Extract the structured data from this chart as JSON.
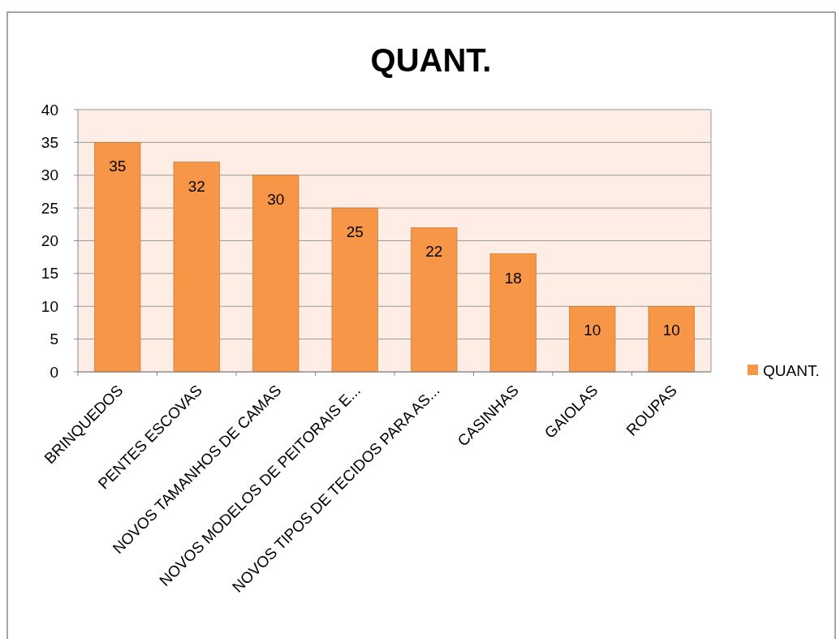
{
  "chart_data": {
    "type": "bar",
    "title": "QUANT.",
    "categories": [
      "BRINQUEDOS",
      "PENTES ESCOVAS",
      "NOVOS TAMANHOS DE CAMAS",
      "NOVOS MODELOS DE PEITORAIS E...",
      "NOVOS TIPOS DE TECIDOS PARA AS...",
      "CASINHAS",
      "GAIOLAS",
      "ROUPAS"
    ],
    "series": [
      {
        "name": "QUANT.",
        "color": "#f79646",
        "values": [
          35,
          32,
          30,
          25,
          22,
          18,
          10,
          10
        ]
      }
    ],
    "ylim": [
      0,
      40
    ],
    "yticks": [
      0,
      5,
      10,
      15,
      20,
      25,
      30,
      35,
      40
    ],
    "grid": "y",
    "legend": "right",
    "data_labels": true
  }
}
